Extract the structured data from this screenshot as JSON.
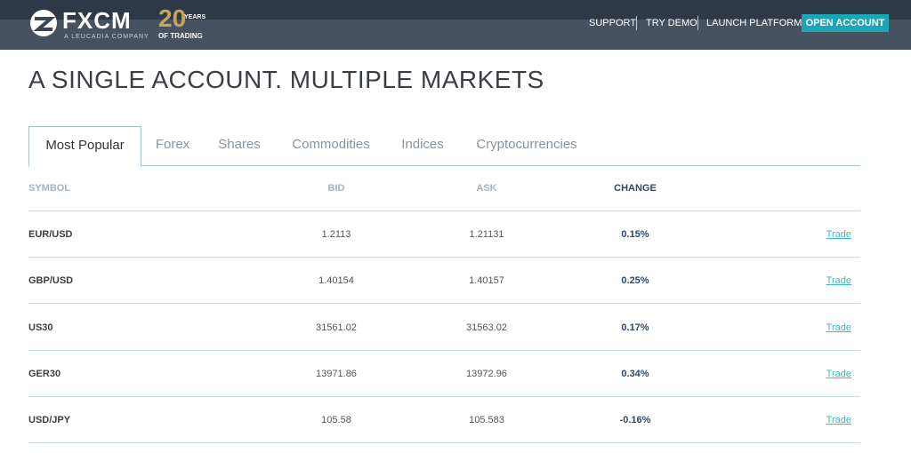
{
  "header": {
    "logo": "FXCM",
    "logo_sub": "A LEUCADIA COMPANY",
    "badge_number": "20",
    "badge_top": "YEARS",
    "badge_bottom": "OF TRADING",
    "nav": [
      "SUPPORT",
      "TRY DEMO",
      "LAUNCH PLATFORM"
    ],
    "cta": "OPEN ACCOUNT"
  },
  "title": "A SINGLE ACCOUNT. MULTIPLE MARKETS",
  "tabs": [
    "Most Popular",
    "Forex",
    "Shares",
    "Commodities",
    "Indices",
    "Cryptocurrencies"
  ],
  "active_tab": 0,
  "table": {
    "columns": [
      "SYMBOL",
      "BID",
      "ASK",
      "CHANGE"
    ],
    "rows": [
      [
        "EUR/USD",
        "1.2113",
        "1.21131",
        "0.15%",
        "Trade"
      ],
      [
        "GBP/USD",
        "1.40154",
        "1.40157",
        "0.25%",
        "Trade"
      ],
      [
        "US30",
        "31561.02",
        "31563.02",
        "0.17%",
        "Trade"
      ],
      [
        "GER30",
        "13971.86",
        "13972.96",
        "0.34%",
        "Trade"
      ],
      [
        "USD/JPY",
        "105.58",
        "105.583",
        "-0.16%",
        "Trade"
      ]
    ]
  }
}
